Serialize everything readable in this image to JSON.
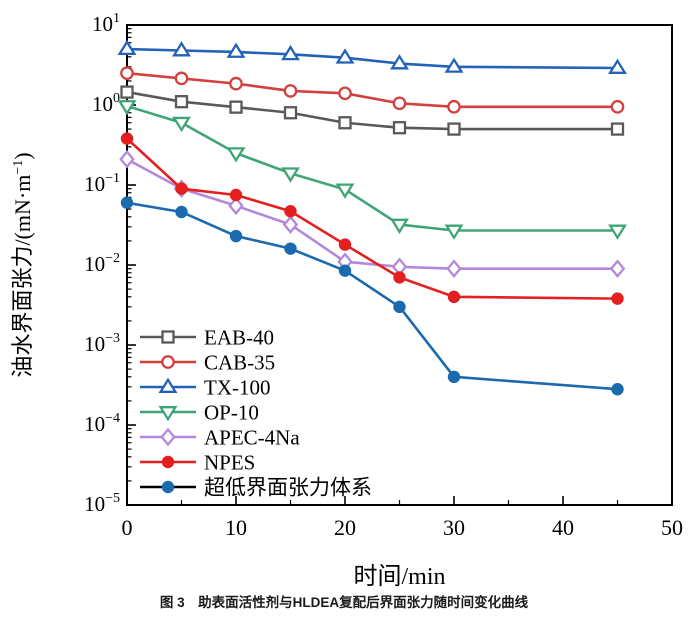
{
  "figure": {
    "caption": "图 3　助表面活性剂与HLDEA复配后界面张力随时间变化曲线"
  },
  "chart_data": {
    "type": "line",
    "title": "",
    "xlabel": "时间/min",
    "ylabel": "油水界面张力/(mN·m⁻¹)",
    "yscale": "log",
    "xlim": [
      0,
      50
    ],
    "ylim": [
      1e-05,
      10
    ],
    "ylim_exp": [
      -5,
      1
    ],
    "x_major_ticks": [
      0,
      10,
      20,
      30,
      40,
      50
    ],
    "x_minor_ticks": [
      5,
      15,
      25,
      35,
      45
    ],
    "grid": false,
    "legend_position": "inside-lower-left",
    "x": [
      0,
      5,
      10,
      15,
      20,
      25,
      30,
      45
    ],
    "series": [
      {
        "name": "EAB-40",
        "color": "#595959",
        "marker": "square-open",
        "values": [
          1.45,
          1.1,
          0.94,
          0.8,
          0.6,
          0.52,
          0.5,
          0.5
        ]
      },
      {
        "name": "CAB-35",
        "color": "#d2413e",
        "marker": "circle-open",
        "values": [
          2.5,
          2.15,
          1.85,
          1.5,
          1.4,
          1.05,
          0.95,
          0.95
        ]
      },
      {
        "name": "TX-100",
        "color": "#2262b8",
        "marker": "triangle-up-open",
        "values": [
          5.0,
          4.8,
          4.6,
          4.3,
          3.9,
          3.3,
          3.0,
          2.9
        ]
      },
      {
        "name": "OP-10",
        "color": "#3fa576",
        "marker": "triangle-down-open",
        "values": [
          0.97,
          0.6,
          0.25,
          0.14,
          0.088,
          0.032,
          0.027,
          0.027
        ]
      },
      {
        "name": "APEC-4Na",
        "color": "#b388dc",
        "marker": "diamond-open",
        "values": [
          0.21,
          0.09,
          0.055,
          0.032,
          0.011,
          0.0095,
          0.009,
          0.009
        ]
      },
      {
        "name": "NPES",
        "color": "#e41f1f",
        "marker": "circle-filled",
        "values": [
          0.38,
          0.09,
          0.075,
          0.047,
          0.018,
          0.007,
          0.004,
          0.0038
        ]
      },
      {
        "name": "超低界面张力体系",
        "color": "#1a6aad",
        "legend_line_color": "#000000",
        "marker": "circle-filled",
        "values": [
          0.06,
          0.046,
          0.023,
          0.016,
          0.0085,
          0.003,
          0.0004,
          0.00028
        ]
      }
    ]
  }
}
